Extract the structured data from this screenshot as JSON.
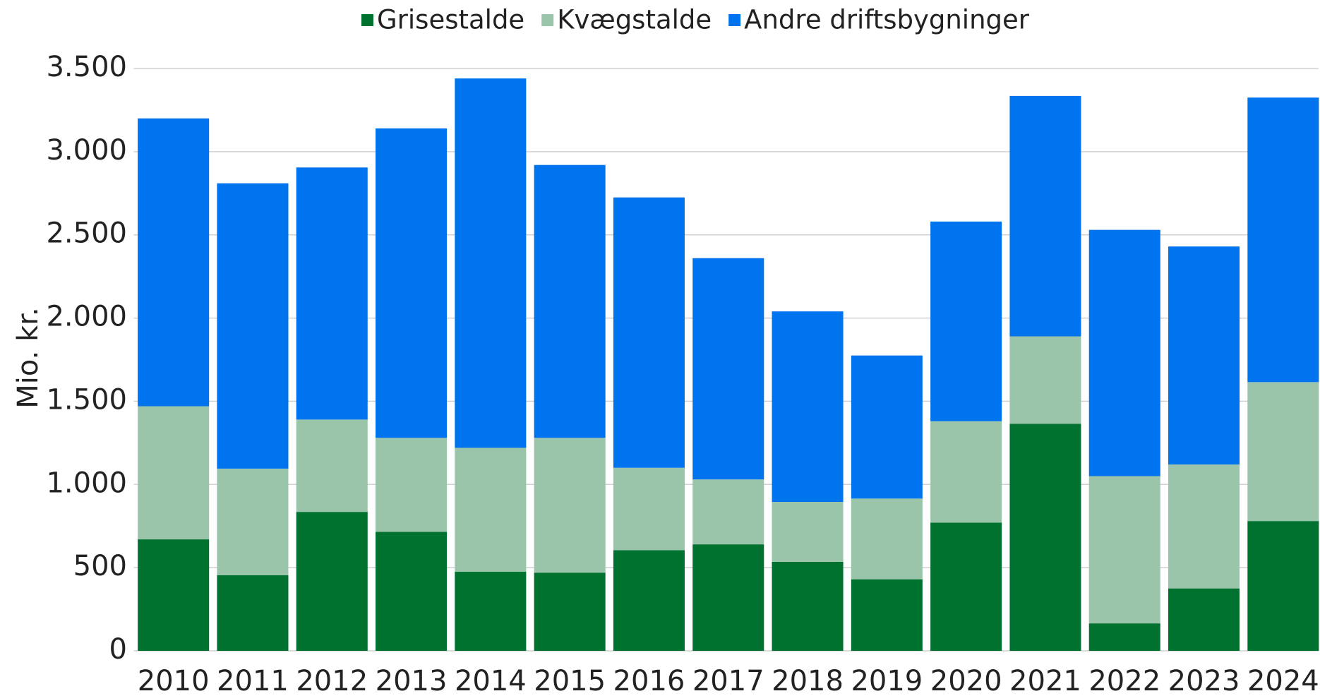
{
  "chart_data": {
    "type": "stacked_bar",
    "y_label": "Mio. kr.",
    "categories": [
      "2010",
      "2011",
      "2012",
      "2013",
      "2014",
      "2015",
      "2016",
      "2017",
      "2018",
      "2019",
      "2020",
      "2021",
      "2022",
      "2023",
      "2024"
    ],
    "series": [
      {
        "name": "Grisestalde",
        "color": "#00722f",
        "values": [
          670,
          455,
          835,
          715,
          475,
          470,
          605,
          640,
          535,
          430,
          770,
          1365,
          165,
          375,
          780
        ]
      },
      {
        "name": "Kvægstalde",
        "color": "#9bc5aa",
        "values": [
          800,
          640,
          555,
          565,
          745,
          810,
          495,
          390,
          360,
          485,
          610,
          525,
          885,
          745,
          835
        ]
      },
      {
        "name": "Andre driftsbygninger",
        "color": "#0074ee",
        "values": [
          1730,
          1715,
          1515,
          1860,
          2220,
          1640,
          1625,
          1330,
          1145,
          860,
          1200,
          1445,
          1480,
          1310,
          1710
        ]
      }
    ],
    "ylim": [
      0,
      3500
    ],
    "yticks": [
      0,
      500,
      {
        "value": 1000,
        "label": "1.000"
      },
      {
        "value": 1500,
        "label": "1.500"
      },
      {
        "value": 2000,
        "label": "2.000"
      },
      {
        "value": 2500,
        "label": "2.500"
      },
      {
        "value": 3000,
        "label": "3.000"
      },
      {
        "value": 3500,
        "label": "3.500"
      }
    ],
    "grid": true,
    "legend": "top"
  }
}
